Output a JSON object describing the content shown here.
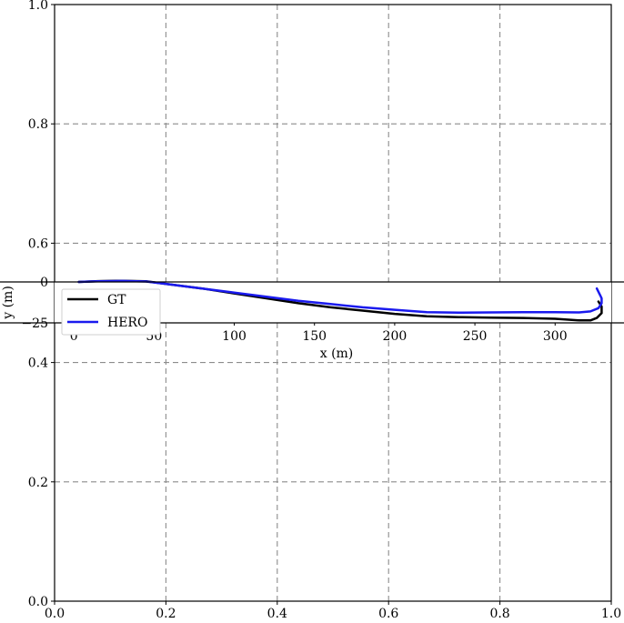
{
  "chart_data": [
    {
      "type": "line",
      "title": "",
      "xlabel": "",
      "ylabel": "",
      "xlim": [
        0.0,
        1.0
      ],
      "ylim": [
        0.0,
        1.0
      ],
      "xticks": [
        "0.0",
        "0.2",
        "0.4",
        "0.6",
        "0.8",
        "1.0"
      ],
      "yticks": [
        "0.0",
        "0.2",
        "0.4",
        "0.6",
        "0.8",
        "1.0"
      ],
      "grid": "on (dashed)",
      "series": []
    },
    {
      "type": "line",
      "title": "",
      "xlabel": "x (m)",
      "ylabel": "y (m)",
      "xlim": [
        -12,
        335
      ],
      "ylim": [
        -25,
        0
      ],
      "xticks": [
        "0",
        "50",
        "100",
        "150",
        "200",
        "250",
        "300"
      ],
      "yticks": [
        "0",
        "−25"
      ],
      "grid": "off",
      "legend": {
        "placement": "lower-left"
      },
      "colors": {
        "GT": "#000000",
        "HERO": "#1a1aee"
      },
      "series": [
        {
          "name": "GT",
          "x": [
            3,
            15,
            30,
            45,
            60,
            80,
            100,
            120,
            140,
            160,
            180,
            200,
            220,
            240,
            260,
            280,
            300,
            315,
            322,
            326,
            329,
            329,
            327
          ],
          "y": [
            0,
            0.5,
            0.7,
            0.4,
            -1.5,
            -4,
            -7,
            -10,
            -13,
            -15.5,
            -17.5,
            -19.5,
            -21,
            -21.5,
            -21.8,
            -22,
            -22.5,
            -23.5,
            -23.5,
            -22,
            -19,
            -15,
            -12
          ]
        },
        {
          "name": "HERO",
          "x": [
            3,
            15,
            30,
            45,
            60,
            80,
            100,
            120,
            140,
            160,
            180,
            200,
            220,
            240,
            260,
            280,
            300,
            315,
            322,
            327,
            329,
            329,
            328,
            326
          ],
          "y": [
            0,
            0.4,
            0.6,
            0.3,
            -1.5,
            -4,
            -6.5,
            -9,
            -11.5,
            -13.5,
            -15.5,
            -17,
            -18.5,
            -18.8,
            -18.6,
            -18.5,
            -18.5,
            -18.6,
            -18,
            -16,
            -13,
            -10,
            -8,
            -4
          ]
        }
      ]
    }
  ]
}
